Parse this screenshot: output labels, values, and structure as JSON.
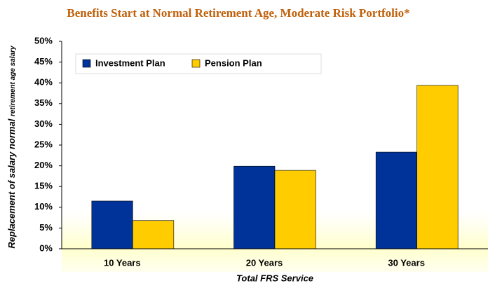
{
  "chart_data": {
    "type": "bar",
    "title": "Benefits Start at Normal Retirement Age,  Moderate Risk Portfolio*",
    "y_label": "Replacement of salary normal",
    "y_label_small": "retirement age salary",
    "x_label": "Total FRS Service",
    "categories": [
      "10 Years",
      "20 Years",
      "30 Years"
    ],
    "series": [
      {
        "name": "Investment Plan",
        "color": "#003399",
        "values": [
          11.5,
          19.9,
          23.3
        ]
      },
      {
        "name": "Pension Plan",
        "color": "#ffcc00",
        "values": [
          6.8,
          18.9,
          39.4
        ]
      }
    ],
    "ylim": [
      0,
      50
    ],
    "yticks": [
      {
        "value": 0,
        "label": "0%"
      },
      {
        "value": 5,
        "label": "5%"
      },
      {
        "value": 10,
        "label": "10%"
      },
      {
        "value": 15,
        "label": "15%"
      },
      {
        "value": 20,
        "label": "20%"
      },
      {
        "value": 25,
        "label": "25%"
      },
      {
        "value": 30,
        "label": "30%"
      },
      {
        "value": 35,
        "label": "35%"
      },
      {
        "value": 40,
        "label": "40%"
      },
      {
        "value": 45,
        "label": "45%"
      },
      {
        "value": 50,
        "label": "50%"
      }
    ],
    "grid": false,
    "legend": "top-left"
  }
}
